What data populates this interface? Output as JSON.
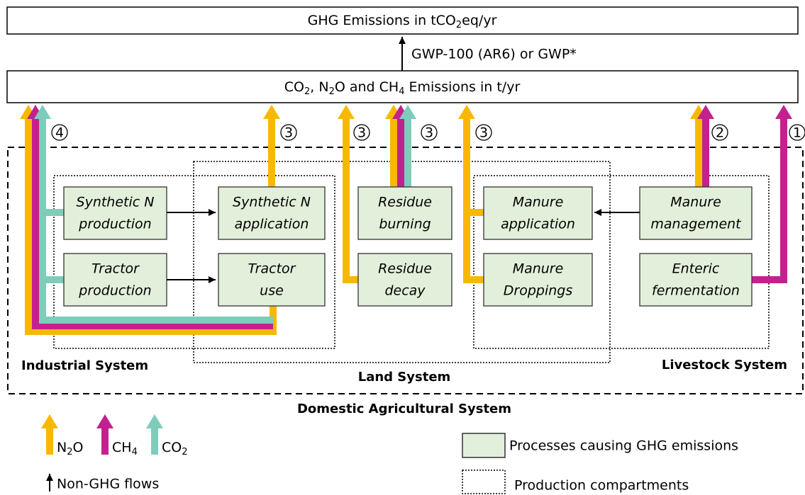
{
  "top_box": [
    "GHG Emissions in tCO",
    "2",
    "eq/yr"
  ],
  "conversion": "GWP-100 (AR6) or GWP*",
  "emissions_box": [
    "CO",
    "2",
    ", N",
    "2",
    "O and CH",
    "4",
    " Emissions in t/yr"
  ],
  "markers": [
    "4",
    "3",
    "3",
    "3",
    "3",
    "2",
    "1"
  ],
  "processes": [
    [
      "Synthetic N",
      "production"
    ],
    [
      "Synthetic N",
      "application"
    ],
    [
      "Residue",
      "burning"
    ],
    [
      "Manure",
      "application"
    ],
    [
      "Manure",
      "management"
    ],
    [
      "Tractor",
      "production"
    ],
    [
      "Tractor",
      "use"
    ],
    [
      "Residue",
      "decay"
    ],
    [
      "Manure",
      "Droppings"
    ],
    [
      "Enteric",
      "fermentation"
    ]
  ],
  "compartments": [
    "Industrial System",
    "Land System",
    "Livestock System"
  ],
  "system": "Domestic Agricultural System",
  "legend": {
    "gases": [
      [
        "N",
        "2",
        "O"
      ],
      [
        "CH",
        "4"
      ],
      [
        "CO",
        "2"
      ]
    ],
    "non_ghg": "Non-GHG flows",
    "processes": "Processes causing GHG emissions",
    "compartments": "Production compartments"
  }
}
